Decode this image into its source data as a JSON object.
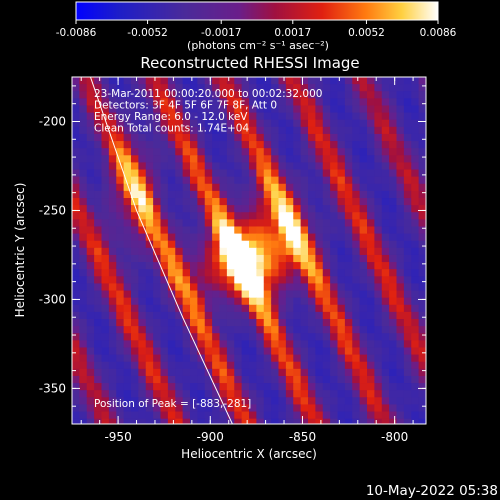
{
  "chart_data": {
    "type": "heatmap",
    "title": "Reconstructed RHESSI Image",
    "xlabel": "Heliocentric X (arcsec)",
    "ylabel": "Heliocentric Y (arcsec)",
    "xlim": [
      -975,
      -783
    ],
    "ylim": [
      -370,
      -175
    ],
    "x_ticks": [
      "-950",
      "-900",
      "-850",
      "-800"
    ],
    "y_ticks": [
      "-200",
      "-250",
      "-300",
      "-350"
    ],
    "colorbar": {
      "min": -0.0086,
      "max": 0.0086,
      "tick_labels": [
        "-0.0086",
        "-0.0052",
        "-0.0017",
        "0.0017",
        "0.0052",
        "0.0086"
      ],
      "unit_label": "(photons cm⁻² s⁻¹ asec⁻²)"
    },
    "info_lines": [
      "23-Mar-2011 00:00:20.000 to 00:02:32.000",
      "Detectors: 3F 4F 5F 6F 7F 8F, Att 0",
      "Energy Range: 6.0 - 12.0 keV",
      "Clean     Total counts: 1.74E+04"
    ],
    "peak_label": "Position of Peak = [-883,-281]",
    "peak_position": [
      -883,
      -281
    ],
    "colormap": "rhessi-blue-purple-red-yellow-white",
    "limb_line": true
  },
  "timestamp": "10-May-2022 05:38"
}
